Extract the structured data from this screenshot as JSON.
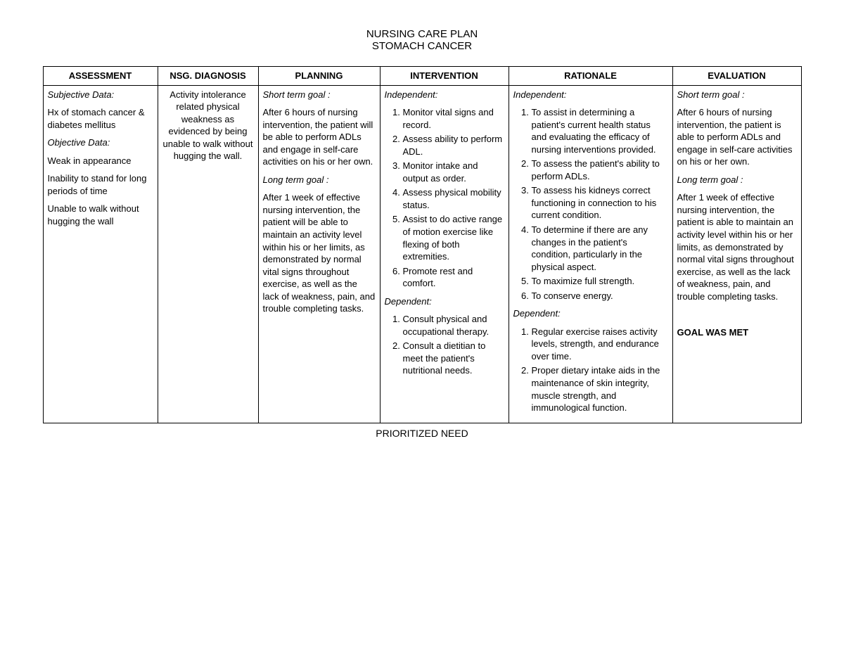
{
  "title": {
    "line1": "NURSING CARE PLAN",
    "line2": "STOMACH CANCER"
  },
  "headers": {
    "assessment": "ASSESSMENT",
    "diagnosis": "NSG. DIAGNOSIS",
    "planning": "PLANNING",
    "intervention": "INTERVENTION",
    "rationale": "RATIONALE",
    "evaluation": "EVALUATION"
  },
  "assessment": {
    "subj_label": "Subjective Data:",
    "subj_text": "Hx of stomach cancer & diabetes mellitus",
    "obj_label": "Objective Data:",
    "obj_1": "Weak in appearance",
    "obj_2": "Inability to stand for long periods of time",
    "obj_3": "Unable to walk without hugging the wall"
  },
  "diagnosis": {
    "text": "Activity intolerance related physical weakness as evidenced by being unable to walk without hugging the wall."
  },
  "planning": {
    "short_label": "Short term goal :",
    "short_text": "After 6 hours of nursing intervention, the patient will be able to perform ADLs and engage in self-care activities on his or her own.",
    "long_label": "Long term goal :",
    "long_text": "After 1 week of effective nursing intervention, the patient will be able to maintain an activity level within his or her limits, as demonstrated by normal vital signs throughout exercise, as well as the lack of weakness, pain, and trouble completing tasks."
  },
  "intervention": {
    "indep_label": "Independent:",
    "indep": [
      "Monitor vital signs and record.",
      "Assess ability to perform ADL.",
      "Monitor intake and output as order.",
      "Assess physical mobility status.",
      "Assist to do active range of motion exercise like flexing of both extremities.",
      "Promote rest and comfort."
    ],
    "dep_label": "Dependent:",
    "dep": [
      "Consult physical and occupational therapy.",
      "Consult a dietitian to meet the patient's nutritional needs."
    ]
  },
  "rationale": {
    "indep_label": "Independent:",
    "indep": [
      "To assist in determining a patient's current health status and evaluating the efficacy of nursing interventions provided.",
      "To assess the patient's ability to perform ADLs.",
      "To assess his kidneys correct functioning in connection to his current condition.",
      "To determine if there are any changes in the patient's condition, particularly in the physical aspect.",
      "To maximize full strength.",
      "To conserve energy."
    ],
    "dep_label": "Dependent:",
    "dep": [
      "Regular exercise raises activity levels, strength, and endurance over time.",
      "Proper dietary intake aids in the maintenance of skin integrity, muscle strength, and immunological function."
    ]
  },
  "evaluation": {
    "short_label": "Short term goal :",
    "short_text": "After 6 hours of nursing intervention, the patient is able to perform ADLs and engage in self-care activities on his or her own.",
    "long_label": "Long term goal :",
    "long_text": "After 1 week of effective nursing intervention, the patient is able to maintain an activity level within his or her limits, as demonstrated by normal vital signs throughout exercise, as well as the lack of weakness, pain, and trouble completing tasks.",
    "result": "GOAL WAS MET"
  },
  "footer": "PRIORITIZED NEED"
}
